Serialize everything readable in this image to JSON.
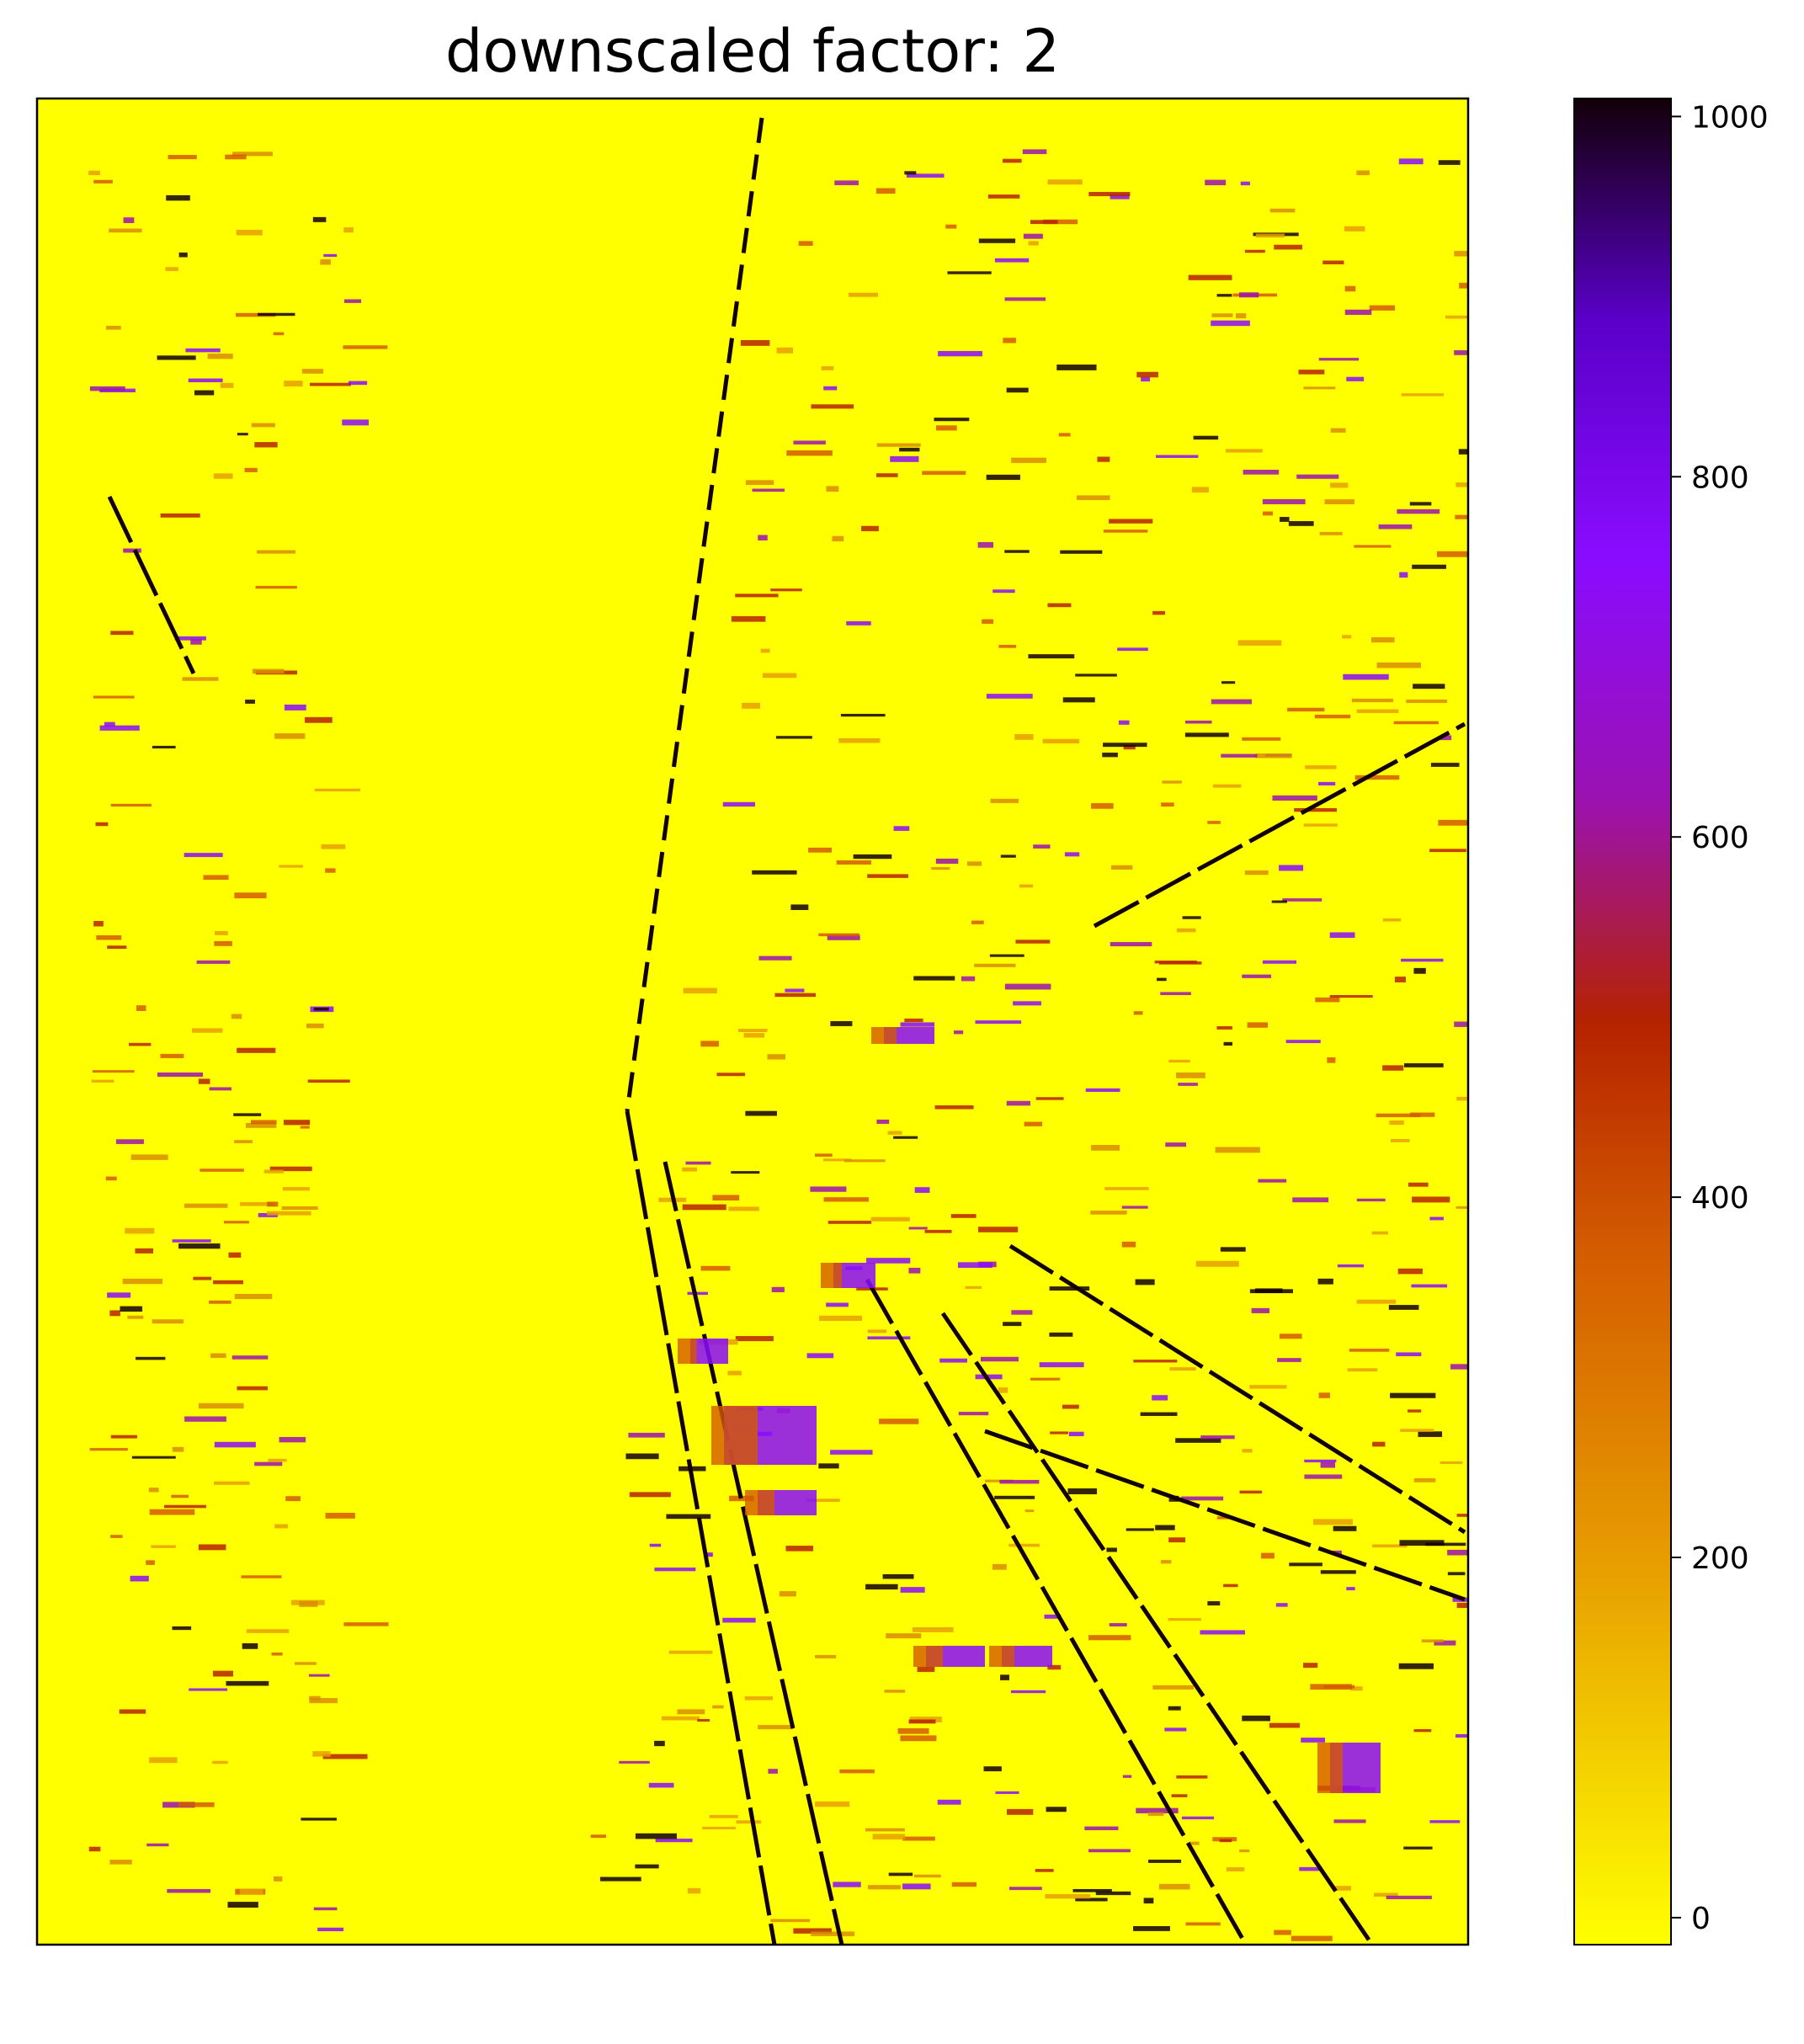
{
  "chart_data": {
    "type": "heatmap",
    "title": "downscaled factor: 2",
    "xlabel": "",
    "ylabel": "",
    "x_ticks": [],
    "y_ticks": [],
    "colormap": "gnuplot-style (yellow → orange → red → purple → black)",
    "colorbar": {
      "range": [
        -15,
        1010
      ],
      "ticks": [
        0,
        200,
        400,
        600,
        800,
        1000
      ],
      "tick_labels": [
        "0",
        "200",
        "400",
        "600",
        "800",
        "1000"
      ],
      "colors": [
        "#ffff00",
        "#e8a000",
        "#d35a00",
        "#b52200",
        "#9b12b0",
        "#8a0cff",
        "#5a00c8",
        "#120008"
      ]
    },
    "background_value": 0,
    "grid": false,
    "description_of_content": "disparity map, mostly 0-valued with sparse streaks of high values"
  }
}
